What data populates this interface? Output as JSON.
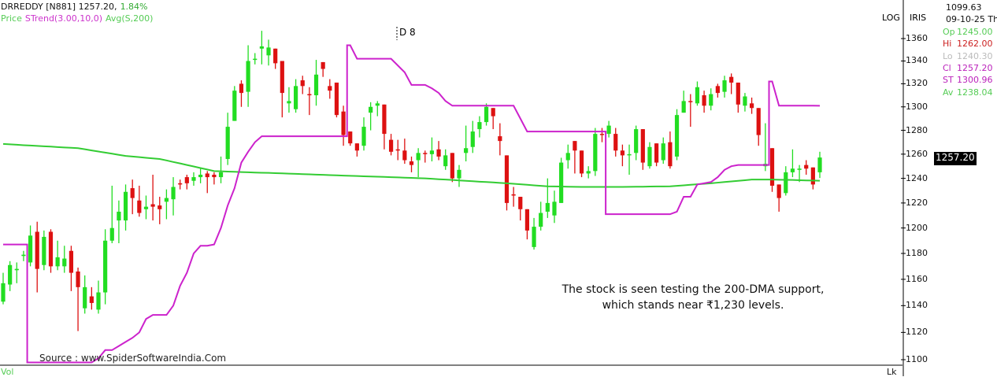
{
  "header": {
    "symbol": "DRREDDY [N881] 1257.20,",
    "change": "1.84%",
    "legend_price": "Price",
    "legend_strend": "STrend(3.00,10,0)",
    "legend_avg": "Avg(S,200)"
  },
  "marker_label": "D 8",
  "axis_flags": {
    "log": "LOG",
    "iris": "IRIS"
  },
  "info_panel": {
    "cursor_value": "1099.63",
    "date": "09-10-25 Th",
    "rows": [
      {
        "key": "Op",
        "value": "1245.00",
        "color": "#55cc55"
      },
      {
        "key": "Hi",
        "value": "1262.00",
        "color": "#cc2222"
      },
      {
        "key": "Lo",
        "value": "1240.30",
        "color": "#bbbbbb"
      },
      {
        "key": "Cl",
        "value": "1257.20",
        "color": "#bb22bb"
      },
      {
        "key": "ST",
        "value": "1300.96",
        "color": "#bb22bb"
      },
      {
        "key": "Av",
        "value": "1238.04",
        "color": "#55cc55"
      }
    ]
  },
  "last_price_label": "1257.20",
  "annotation": {
    "line1": "The stock is seen testing the 200-DMA support,",
    "line2": "which stands near ₹1,230 levels."
  },
  "source": "Source : www.SpiderSoftwareIndia.Com",
  "volume_label": "Vol",
  "lock_label": "Lk",
  "colors": {
    "up": "#22dd22",
    "down": "#dd1111",
    "supertrend": "#cc22cc",
    "sma": "#33cc33",
    "last_label_bg": "#000000"
  },
  "chart_data": {
    "type": "candlestick",
    "scale": "log",
    "ylim": [
      1100,
      1360
    ],
    "yticks": [
      "1100",
      "1120",
      "1140",
      "1160",
      "1180",
      "1200",
      "1220",
      "1240",
      "1260",
      "1280",
      "1300",
      "1320",
      "1340",
      "1360"
    ],
    "grid": false,
    "ohlc": [
      [
        1143,
        1165,
        1141,
        1157
      ],
      [
        1156,
        1174,
        1151,
        1171
      ],
      [
        1167,
        1173,
        1157,
        1168
      ],
      [
        1178,
        1182,
        1174,
        1179
      ],
      [
        1173,
        1202,
        1170,
        1194
      ],
      [
        1197,
        1205,
        1150,
        1168
      ],
      [
        1171,
        1198,
        1167,
        1193
      ],
      [
        1197,
        1199,
        1165,
        1170
      ],
      [
        1170,
        1190,
        1167,
        1177
      ],
      [
        1170,
        1186,
        1165,
        1176
      ],
      [
        1182,
        1186,
        1151,
        1165
      ],
      [
        1166,
        1169,
        1121,
        1154
      ],
      [
        1138,
        1163,
        1134,
        1154
      ],
      [
        1147,
        1154,
        1137,
        1142
      ],
      [
        1137,
        1159,
        1134,
        1150
      ],
      [
        1150,
        1199,
        1141,
        1190
      ],
      [
        1190,
        1234,
        1188,
        1200
      ],
      [
        1206,
        1222,
        1188,
        1213
      ],
      [
        1206,
        1235,
        1198,
        1229
      ],
      [
        1232,
        1239,
        1211,
        1224
      ],
      [
        1222,
        1234,
        1209,
        1212
      ],
      [
        1215,
        1226,
        1207,
        1217
      ],
      [
        1219,
        1243,
        1206,
        1217
      ],
      [
        1218,
        1225,
        1203,
        1215
      ],
      [
        1221,
        1231,
        1207,
        1224
      ],
      [
        1223,
        1241,
        1210,
        1233
      ],
      [
        1236,
        1239,
        1231,
        1235
      ],
      [
        1241,
        1243,
        1231,
        1236
      ],
      [
        1238,
        1245,
        1234,
        1241
      ],
      [
        1241,
        1248,
        1236,
        1243
      ],
      [
        1244,
        1246,
        1228,
        1241
      ],
      [
        1243,
        1245,
        1235,
        1241
      ],
      [
        1241,
        1258,
        1236,
        1245
      ],
      [
        1256,
        1295,
        1251,
        1283
      ],
      [
        1288,
        1318,
        1288,
        1314
      ],
      [
        1320,
        1323,
        1300,
        1312
      ],
      [
        1313,
        1354,
        1300,
        1340
      ],
      [
        1341,
        1347,
        1337,
        1342
      ],
      [
        1351,
        1367,
        1337,
        1353
      ],
      [
        1345,
        1359,
        1336,
        1352
      ],
      [
        1351,
        1351,
        1333,
        1338
      ],
      [
        1340,
        1340,
        1291,
        1312
      ],
      [
        1303,
        1317,
        1295,
        1305
      ],
      [
        1298,
        1324,
        1295,
        1318
      ],
      [
        1323,
        1327,
        1311,
        1318
      ],
      [
        1311,
        1317,
        1293,
        1310
      ],
      [
        1310,
        1341,
        1301,
        1328
      ],
      [
        1339,
        1339,
        1326,
        1333
      ],
      [
        1318,
        1324,
        1307,
        1314
      ],
      [
        1321,
        1321,
        1291,
        1293
      ],
      [
        1296,
        1301,
        1267,
        1276
      ],
      [
        1279,
        1279,
        1267,
        1269
      ],
      [
        1269,
        1269,
        1258,
        1263
      ],
      [
        1267,
        1291,
        1263,
        1283
      ],
      [
        1295,
        1304,
        1280,
        1300
      ],
      [
        1301,
        1305,
        1292,
        1303
      ],
      [
        1302,
        1302,
        1264,
        1277
      ],
      [
        1272,
        1277,
        1259,
        1262
      ],
      [
        1264,
        1272,
        1255,
        1263
      ],
      [
        1263,
        1273,
        1252,
        1255
      ],
      [
        1254,
        1258,
        1245,
        1251
      ],
      [
        1255,
        1265,
        1241,
        1261
      ],
      [
        1261,
        1263,
        1253,
        1260
      ],
      [
        1260,
        1274,
        1254,
        1263
      ],
      [
        1264,
        1271,
        1255,
        1258
      ],
      [
        1250,
        1264,
        1247,
        1259
      ],
      [
        1261,
        1261,
        1237,
        1240
      ],
      [
        1240,
        1251,
        1233,
        1247
      ],
      [
        1261,
        1284,
        1254,
        1265
      ],
      [
        1266,
        1288,
        1261,
        1279
      ],
      [
        1281,
        1292,
        1274,
        1287
      ],
      [
        1287,
        1303,
        1284,
        1300
      ],
      [
        1299,
        1299,
        1281,
        1292
      ],
      [
        1275,
        1286,
        1259,
        1271
      ],
      [
        1259,
        1259,
        1214,
        1220
      ],
      [
        1227,
        1233,
        1217,
        1226
      ],
      [
        1225,
        1225,
        1206,
        1215
      ],
      [
        1215,
        1215,
        1191,
        1198
      ],
      [
        1185,
        1208,
        1183,
        1201
      ],
      [
        1201,
        1221,
        1198,
        1212
      ],
      [
        1213,
        1240,
        1208,
        1220
      ],
      [
        1210,
        1230,
        1204,
        1221
      ],
      [
        1220,
        1257,
        1220,
        1253
      ],
      [
        1255,
        1268,
        1248,
        1261
      ],
      [
        1271,
        1271,
        1244,
        1263
      ],
      [
        1263,
        1263,
        1241,
        1244
      ],
      [
        1244,
        1250,
        1240,
        1246
      ],
      [
        1246,
        1282,
        1242,
        1277
      ],
      [
        1277,
        1282,
        1270,
        1276
      ],
      [
        1277,
        1288,
        1274,
        1284
      ],
      [
        1277,
        1282,
        1258,
        1263
      ],
      [
        1263,
        1268,
        1250,
        1259
      ],
      [
        1259,
        1268,
        1243,
        1260
      ],
      [
        1261,
        1284,
        1255,
        1281
      ],
      [
        1281,
        1281,
        1247,
        1253
      ],
      [
        1250,
        1270,
        1248,
        1266
      ],
      [
        1269,
        1269,
        1250,
        1253
      ],
      [
        1255,
        1274,
        1252,
        1269
      ],
      [
        1270,
        1279,
        1248,
        1250
      ],
      [
        1258,
        1298,
        1255,
        1293
      ],
      [
        1295,
        1314,
        1295,
        1305
      ],
      [
        1305,
        1311,
        1283,
        1304
      ],
      [
        1303,
        1322,
        1301,
        1317
      ],
      [
        1310,
        1314,
        1295,
        1301
      ],
      [
        1301,
        1316,
        1297,
        1311
      ],
      [
        1318,
        1320,
        1308,
        1312
      ],
      [
        1313,
        1327,
        1308,
        1323
      ],
      [
        1326,
        1329,
        1311,
        1321
      ],
      [
        1321,
        1321,
        1295,
        1302
      ],
      [
        1301,
        1312,
        1296,
        1309
      ],
      [
        1303,
        1308,
        1294,
        1299
      ],
      [
        1299,
        1299,
        1267,
        1276
      ],
      [
        1250,
        1286,
        1246,
        1252
      ],
      [
        1265,
        1265,
        1229,
        1234
      ],
      [
        1235,
        1235,
        1213,
        1224
      ],
      [
        1228,
        1250,
        1226,
        1245
      ],
      [
        1245,
        1264,
        1241,
        1248
      ],
      [
        1247,
        1251,
        1237,
        1248
      ],
      [
        1251,
        1255,
        1243,
        1248
      ],
      [
        1249,
        1249,
        1231,
        1235
      ],
      [
        1245,
        1262,
        1240.3,
        1257.2
      ]
    ],
    "series": [
      {
        "name": "STrend(3.00,10,0)",
        "values": [
          1187,
          1187,
          1187,
          1187,
          1098,
          1098,
          1098,
          1098,
          1098,
          1098,
          1098,
          1098,
          1098,
          1098,
          1101,
          1107,
          1107,
          1110,
          1113,
          1116,
          1120,
          1130,
          1133,
          1133,
          1133,
          1140,
          1155,
          1165,
          1180,
          1186,
          1186,
          1187,
          1200,
          1218,
          1232,
          1253,
          1262,
          1270,
          1275,
          1275,
          1275,
          1275,
          1275,
          1275,
          1275,
          1275,
          1275,
          1275,
          1275,
          1275,
          1275,
          1354,
          1342,
          1342,
          1342,
          1342,
          1342,
          1342,
          1336,
          1330,
          1319,
          1319,
          1319,
          1316,
          1312,
          1305,
          1301,
          1301,
          1301,
          1301,
          1301,
          1301,
          1301,
          1301,
          1301,
          1301,
          1290,
          1279,
          1279,
          1279,
          1279,
          1279,
          1279,
          1279,
          1279,
          1279,
          1279,
          1279,
          1279,
          1211,
          1211,
          1211,
          1211,
          1211,
          1211,
          1211,
          1211,
          1211,
          1211,
          1213,
          1225,
          1225,
          1235,
          1236,
          1237,
          1241,
          1247,
          1250,
          1251,
          1251,
          1251,
          1251,
          1251,
          1322,
          1301,
          1301,
          1301,
          1301,
          1301,
          1301,
          1300.96
        ]
      },
      {
        "name": "Avg(S,200)",
        "values": [
          1268.5,
          1268.2,
          1267.9,
          1267.5,
          1267.2,
          1266.9,
          1266.6,
          1266.3,
          1265.9,
          1265.6,
          1265.3,
          1265.0,
          1264.1,
          1263.1,
          1262.2,
          1261.3,
          1260.4,
          1259.4,
          1258.5,
          1258.0,
          1257.5,
          1257.0,
          1256.5,
          1256.0,
          1254.8,
          1253.5,
          1252.3,
          1251.0,
          1249.8,
          1248.5,
          1247.3,
          1246.0,
          1245.8,
          1245.6,
          1245.4,
          1245.2,
          1245.0,
          1244.8,
          1244.6,
          1244.5,
          1244.3,
          1244.1,
          1243.9,
          1243.7,
          1243.5,
          1243.3,
          1243.1,
          1242.9,
          1242.7,
          1242.5,
          1242.3,
          1242.1,
          1241.9,
          1241.7,
          1241.5,
          1241.4,
          1241.2,
          1241.0,
          1240.8,
          1240.6,
          1240.4,
          1240.2,
          1240.0,
          1239.7,
          1239.3,
          1239.0,
          1238.7,
          1238.3,
          1238.0,
          1237.7,
          1237.3,
          1237.0,
          1236.7,
          1236.3,
          1236.0,
          1235.6,
          1235.2,
          1234.8,
          1234.3,
          1233.9,
          1233.5,
          1233.4,
          1233.3,
          1233.2,
          1233.1,
          1233.0,
          1233.0,
          1233.0,
          1233.0,
          1233.0,
          1233.0,
          1233.0,
          1233.1,
          1233.2,
          1233.2,
          1233.3,
          1233.4,
          1233.4,
          1233.5,
          1233.9,
          1234.3,
          1234.8,
          1235.2,
          1235.6,
          1236.0,
          1236.5,
          1237.0,
          1237.5,
          1238.0,
          1238.5,
          1239.0,
          1239.0,
          1239.0,
          1239.0,
          1238.9,
          1238.8,
          1238.7,
          1238.5,
          1238.3,
          1238.2,
          1238.04
        ]
      }
    ]
  }
}
